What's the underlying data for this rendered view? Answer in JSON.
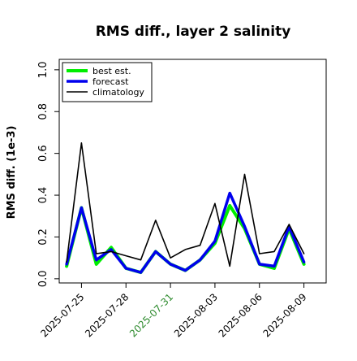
{
  "chart_data": {
    "type": "line",
    "title": "RMS diff., layer 2 salinity",
    "xlabel": "",
    "ylabel": "RMS diff. (1e-3)",
    "ylim": [
      -0.02,
      1.05
    ],
    "y_ticks": [
      0.0,
      0.2,
      0.4,
      0.6,
      0.8,
      1.0
    ],
    "y_tick_labels": [
      "0.0",
      "0.2",
      "0.4",
      "0.6",
      "0.8",
      "1.0"
    ],
    "x_ticks": [
      "2025-07-25",
      "2025-07-28",
      "2025-07-31",
      "2025-08-03",
      "2025-08-06",
      "2025-08-09"
    ],
    "highlighted_tick": "2025-07-31",
    "x_range": [
      "2025-07-23T12:00",
      "2025-08-10T12:00"
    ],
    "grid": false,
    "legend": "top-left",
    "x": [
      "2025-07-24",
      "2025-07-25",
      "2025-07-26",
      "2025-07-27",
      "2025-07-28",
      "2025-07-29",
      "2025-07-30",
      "2025-07-31",
      "2025-08-01",
      "2025-08-02",
      "2025-08-03",
      "2025-08-04",
      "2025-08-05",
      "2025-08-06",
      "2025-08-07",
      "2025-08-08",
      "2025-08-09"
    ],
    "series": [
      {
        "name": "best est.",
        "color": "#00ee00",
        "values": [
          0.06,
          0.34,
          0.07,
          0.15,
          0.05,
          0.03,
          0.13,
          0.07,
          0.04,
          0.09,
          0.17,
          0.35,
          0.24,
          0.07,
          0.05,
          0.24,
          0.07
        ]
      },
      {
        "name": "forecast",
        "color": "#0000ee",
        "values": [
          0.07,
          0.34,
          0.09,
          0.14,
          0.05,
          0.03,
          0.13,
          0.07,
          0.04,
          0.09,
          0.18,
          0.41,
          0.25,
          0.07,
          0.06,
          0.25,
          0.08
        ]
      },
      {
        "name": "climatology",
        "color": "#000000",
        "values": [
          0.08,
          0.65,
          0.12,
          0.13,
          0.11,
          0.09,
          0.28,
          0.1,
          0.14,
          0.16,
          0.36,
          0.06,
          0.5,
          0.12,
          0.13,
          0.26,
          0.12
        ]
      }
    ]
  }
}
